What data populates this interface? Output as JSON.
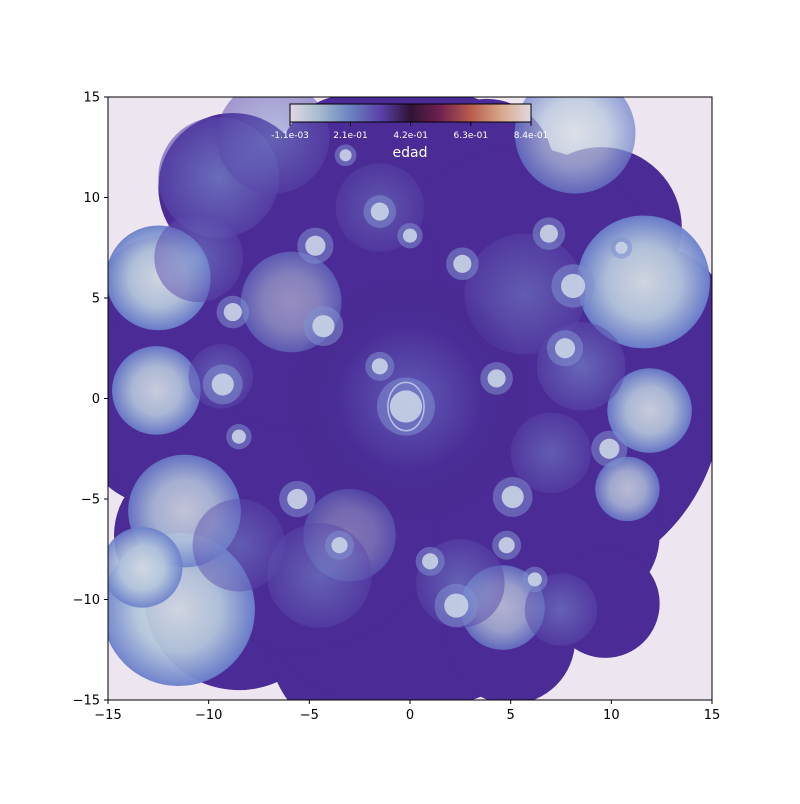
{
  "colors": {
    "background": "#ede5f0",
    "base": "#4b2b95",
    "frame": "#000000",
    "colorbar_label_text": "#ffffff"
  },
  "chart_data": {
    "type": "heatmap",
    "title": "",
    "xlabel": "",
    "ylabel": "",
    "xlim": [
      -15,
      15
    ],
    "ylim": [
      -15,
      15
    ],
    "x_ticks": [
      -15,
      -10,
      -5,
      0,
      5,
      10,
      15
    ],
    "y_ticks": [
      -15,
      -10,
      -5,
      0,
      5,
      10,
      15
    ],
    "x_tick_labels": [
      "−15",
      "−10",
      "−5",
      "0",
      "5",
      "10",
      "15"
    ],
    "y_tick_labels": [
      "−15",
      "−10",
      "−5",
      "0",
      "5",
      "10",
      "15"
    ],
    "grid": false,
    "colorbar": {
      "label": "edad",
      "placement": "top-center, inset",
      "colormap": "twilight",
      "tick_labels": [
        "-1.1e-03",
        "2.1e-01",
        "4.2e-01",
        "6.3e-01",
        "8.4e-01"
      ],
      "tick_values": [
        -0.0011,
        0.21,
        0.42,
        0.63,
        0.84
      ],
      "range": [
        -0.0011,
        0.84
      ]
    }
  }
}
